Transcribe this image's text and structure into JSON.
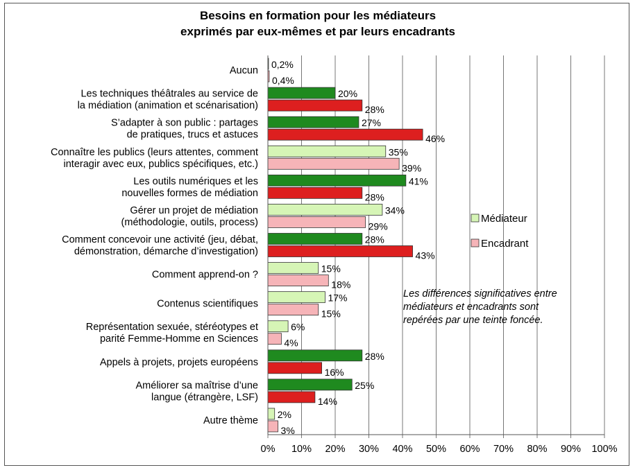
{
  "chart_data": {
    "type": "bar",
    "orientation": "horizontal",
    "title": [
      "Besoins en formation pour les médiateurs",
      "exprimés par eux-mêmes et par leurs encadrants"
    ],
    "xlim": [
      0,
      100
    ],
    "x_ticks": [
      "0%",
      "10%",
      "20%",
      "30%",
      "40%",
      "50%",
      "60%",
      "70%",
      "80%",
      "90%",
      "100%"
    ],
    "grid": true,
    "legend_position": "right",
    "series": [
      {
        "name": "Médiateur",
        "light_color": "#d6f5b6",
        "dark_color": "#1f8a1f"
      },
      {
        "name": "Encadrant",
        "light_color": "#f6b4b8",
        "dark_color": "#dd1f1f"
      }
    ],
    "categories": [
      {
        "lines": [
          "Aucun"
        ],
        "values": [
          0.2,
          0.4
        ],
        "labels": [
          "0,2%",
          "0,4%"
        ],
        "significant": [
          false,
          false
        ]
      },
      {
        "lines": [
          "Les techniques théâtrales au service de",
          "la médiation (animation et scénarisation)"
        ],
        "values": [
          20,
          28
        ],
        "labels": [
          "20%",
          "28%"
        ],
        "significant": [
          true,
          true
        ]
      },
      {
        "lines": [
          "S’adapter à son public : partages",
          "de pratiques, trucs et astuces"
        ],
        "values": [
          27,
          46
        ],
        "labels": [
          "27%",
          "46%"
        ],
        "significant": [
          true,
          true
        ]
      },
      {
        "lines": [
          "Connaître les publics (leurs attentes, comment",
          "interagir avec eux, publics spécifiques, etc.)"
        ],
        "values": [
          35,
          39
        ],
        "labels": [
          "35%",
          "39%"
        ],
        "significant": [
          false,
          false
        ]
      },
      {
        "lines": [
          "Les outils numériques et les",
          "nouvelles formes de médiation"
        ],
        "values": [
          41,
          28
        ],
        "labels": [
          "41%",
          "28%"
        ],
        "significant": [
          true,
          true
        ]
      },
      {
        "lines": [
          "Gérer un projet de médiation",
          "(méthodologie, outils, process)"
        ],
        "values": [
          34,
          29
        ],
        "labels": [
          "34%",
          "29%"
        ],
        "significant": [
          false,
          false
        ]
      },
      {
        "lines": [
          "Comment concevoir une activité (jeu, débat,",
          "démonstration, démarche d’investigation)"
        ],
        "values": [
          28,
          43
        ],
        "labels": [
          "28%",
          "43%"
        ],
        "significant": [
          true,
          true
        ]
      },
      {
        "lines": [
          "Comment apprend-on ?"
        ],
        "values": [
          15,
          18
        ],
        "labels": [
          "15%",
          "18%"
        ],
        "significant": [
          false,
          false
        ]
      },
      {
        "lines": [
          "Contenus scientifiques"
        ],
        "values": [
          17,
          15
        ],
        "labels": [
          "17%",
          "15%"
        ],
        "significant": [
          false,
          false
        ]
      },
      {
        "lines": [
          "Représentation sexuée, stéréotypes et",
          "parité Femme-Homme en Sciences"
        ],
        "values": [
          6,
          4
        ],
        "labels": [
          "6%",
          "4%"
        ],
        "significant": [
          false,
          false
        ]
      },
      {
        "lines": [
          "Appels à projets, projets européens"
        ],
        "values": [
          28,
          16
        ],
        "labels": [
          "28%",
          "16%"
        ],
        "significant": [
          true,
          true
        ]
      },
      {
        "lines": [
          "Améliorer sa maîtrise d’une",
          "langue (étrangère, LSF)"
        ],
        "values": [
          25,
          14
        ],
        "labels": [
          "25%",
          "14%"
        ],
        "significant": [
          true,
          true
        ]
      },
      {
        "lines": [
          "Autre thème"
        ],
        "values": [
          2,
          3
        ],
        "labels": [
          "2%",
          "3%"
        ],
        "significant": [
          false,
          false
        ]
      }
    ],
    "annotation": [
      "Les différences significatives entre",
      "médiateurs et encadrants sont",
      "repérées par une teinte foncée."
    ]
  }
}
